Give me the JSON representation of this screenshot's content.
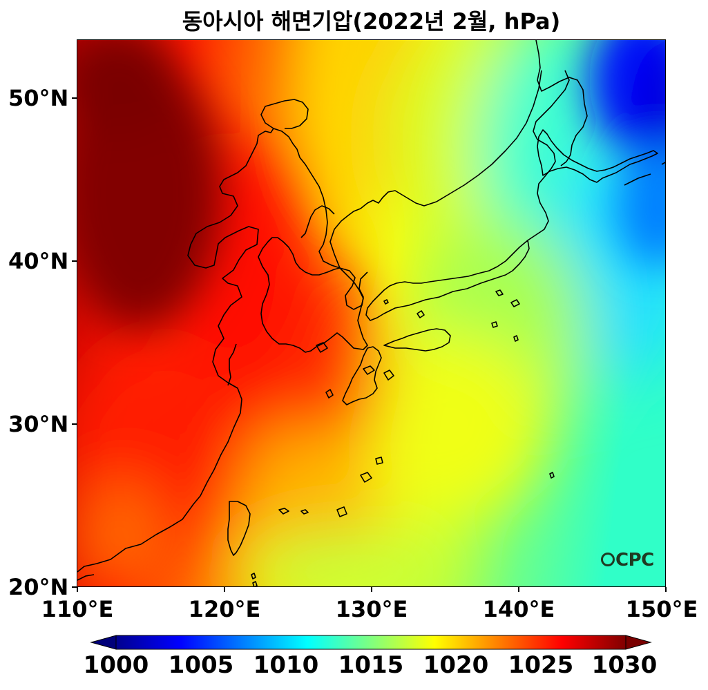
{
  "title": "동아시아 해면기압(2022년 2월, hPa)",
  "map": {
    "lon_range": [
      110,
      150
    ],
    "lat_range": [
      20,
      53.5
    ],
    "lat_ticks": [
      "50°N",
      "40°N",
      "30°N",
      "20°N"
    ],
    "lon_ticks": [
      "110°E",
      "120°E",
      "130°E",
      "140°E",
      "150°E"
    ],
    "colormap": "jet",
    "coastline_color": "#000000"
  },
  "colorbar": {
    "min": 1000,
    "max": 1030,
    "labels": [
      "1000",
      "1005",
      "1010",
      "1015",
      "1020",
      "1025",
      "1030"
    ],
    "extend": "both"
  },
  "logo": {
    "text": "CPC",
    "color": "#1f3a22"
  }
}
